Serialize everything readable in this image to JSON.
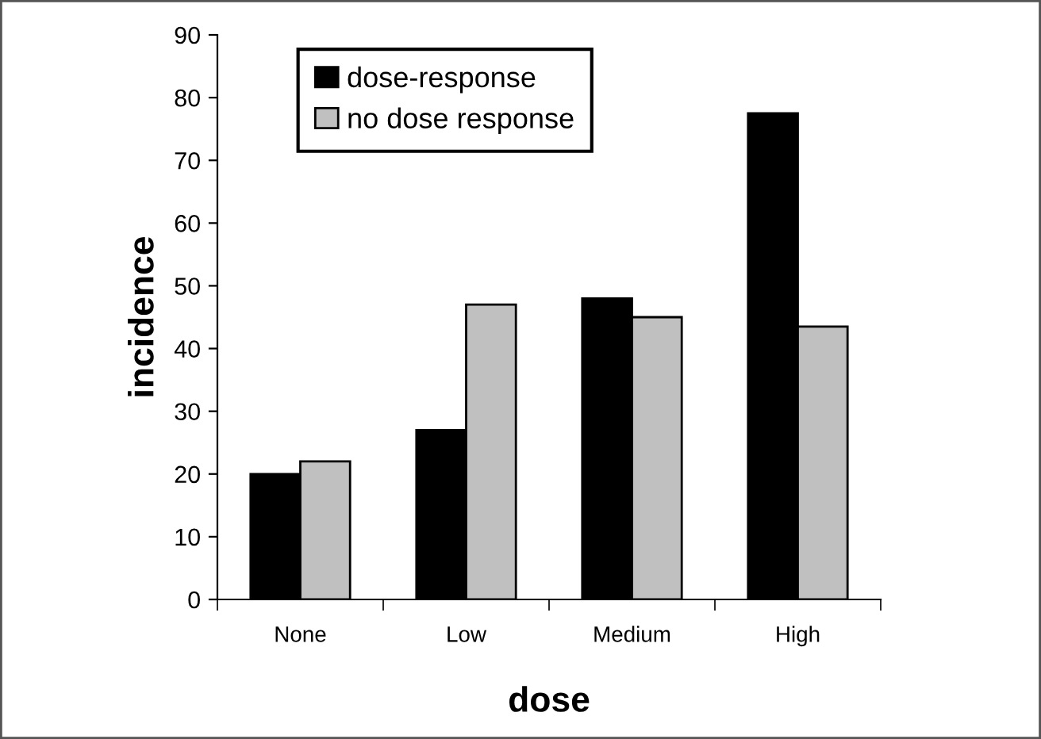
{
  "chart_data": {
    "type": "bar",
    "xlabel": "dose",
    "ylabel": "incidence",
    "categories": [
      "None",
      "Low",
      "Medium",
      "High"
    ],
    "series": [
      {
        "name": "dose-response",
        "color": "#000000",
        "values": [
          20,
          27,
          48,
          77.5
        ]
      },
      {
        "name": "no dose response",
        "color": "#c0c0c0",
        "values": [
          22,
          47,
          45,
          43.5
        ]
      }
    ],
    "ylim": [
      0,
      90
    ],
    "yticks": [
      0,
      10,
      20,
      30,
      40,
      50,
      60,
      70,
      80,
      90
    ],
    "grid": false,
    "legend": "top left"
  }
}
